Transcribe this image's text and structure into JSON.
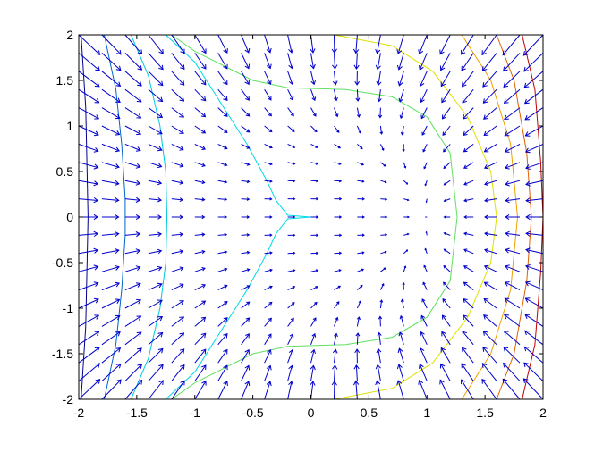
{
  "chart_data": {
    "type": "contour+quiver",
    "xlim": [
      -2,
      2
    ],
    "ylim": [
      -2,
      2
    ],
    "x_ticks": [
      -2,
      -1.5,
      -1,
      -0.5,
      0,
      0.5,
      1,
      1.5,
      2
    ],
    "y_ticks": [
      -2,
      -1.5,
      -1,
      -0.5,
      0,
      0.5,
      1,
      1.5,
      2
    ],
    "x_tick_labels": [
      "-2",
      "-1.5",
      "-1",
      "-0.5",
      "0",
      "0.5",
      "1",
      "1.5",
      "2"
    ],
    "y_tick_labels": [
      "-2",
      "-1.5",
      "-1",
      "-0.5",
      "0",
      "0.5",
      "1",
      "1.5",
      "2"
    ],
    "grid": false,
    "title": "",
    "xlabel": "",
    "ylabel": "",
    "quiver": {
      "grid_spacing": 0.2,
      "arrow_color": "#0000cc"
    },
    "contours": [
      {
        "color": "#00008f",
        "points": [
          [
            -1.98,
            2
          ],
          [
            -1.94,
            1.2
          ],
          [
            -1.93,
            0.6
          ],
          [
            -1.92,
            0
          ],
          [
            -1.93,
            -0.6
          ],
          [
            -1.94,
            -1.2
          ],
          [
            -1.98,
            -2
          ]
        ]
      },
      {
        "color": "#0066cc",
        "points": [
          [
            -1.78,
            2
          ],
          [
            -1.68,
            1.4
          ],
          [
            -1.63,
            0.8
          ],
          [
            -1.6,
            0.2
          ],
          [
            -1.6,
            0
          ],
          [
            -1.6,
            -0.2
          ],
          [
            -1.63,
            -0.8
          ],
          [
            -1.68,
            -1.4
          ],
          [
            -1.78,
            -2
          ]
        ]
      },
      {
        "color": "#00c8dc",
        "points": [
          [
            -1.55,
            2
          ],
          [
            -1.4,
            1.55
          ],
          [
            -1.3,
            1.0
          ],
          [
            -1.25,
            0.5
          ],
          [
            -1.24,
            0
          ],
          [
            -1.25,
            -0.5
          ],
          [
            -1.3,
            -1.0
          ],
          [
            -1.4,
            -1.55
          ],
          [
            -1.55,
            -2
          ]
        ]
      },
      {
        "color": "#00d8e8",
        "points": [
          [
            -1.25,
            2
          ],
          [
            -1.0,
            1.7
          ],
          [
            -0.75,
            1.2
          ],
          [
            -0.55,
            0.8
          ],
          [
            -0.38,
            0.4
          ],
          [
            -0.3,
            0.18
          ],
          [
            -0.2,
            0.02
          ],
          [
            0,
            0
          ],
          [
            -0.2,
            -0.02
          ],
          [
            -0.3,
            -0.18
          ],
          [
            -0.38,
            -0.4
          ],
          [
            -0.55,
            -0.8
          ],
          [
            -0.75,
            -1.2
          ],
          [
            -1.0,
            -1.7
          ],
          [
            -1.25,
            -2
          ]
        ]
      },
      {
        "color": "#60e060",
        "points": [
          [
            -1.2,
            -2
          ],
          [
            -1.0,
            -1.82
          ],
          [
            -0.5,
            -1.5
          ],
          [
            -0.2,
            -1.42
          ],
          [
            0.3,
            -1.4
          ],
          [
            0.7,
            -1.32
          ],
          [
            1.0,
            -1.1
          ],
          [
            1.2,
            -0.7
          ],
          [
            1.26,
            0
          ],
          [
            1.2,
            0.7
          ],
          [
            1.0,
            1.1
          ],
          [
            0.7,
            1.32
          ],
          [
            0.3,
            1.4
          ],
          [
            -0.2,
            1.42
          ],
          [
            -0.5,
            1.5
          ],
          [
            -1.0,
            1.82
          ],
          [
            -1.2,
            2
          ]
        ]
      },
      {
        "color": "#e0e000",
        "points": [
          [
            0.2,
            -2
          ],
          [
            0.7,
            -1.88
          ],
          [
            1.05,
            -1.6
          ],
          [
            1.35,
            -1.1
          ],
          [
            1.55,
            -0.5
          ],
          [
            1.6,
            0
          ],
          [
            1.55,
            0.5
          ],
          [
            1.35,
            1.1
          ],
          [
            1.05,
            1.6
          ],
          [
            0.7,
            1.88
          ],
          [
            0.2,
            2
          ]
        ]
      },
      {
        "color": "#f0a000",
        "points": [
          [
            1.3,
            -2
          ],
          [
            1.55,
            -1.5
          ],
          [
            1.72,
            -0.8
          ],
          [
            1.78,
            0
          ],
          [
            1.72,
            0.8
          ],
          [
            1.55,
            1.5
          ],
          [
            1.3,
            2
          ]
        ]
      },
      {
        "color": "#e06000",
        "points": [
          [
            1.6,
            -2
          ],
          [
            1.75,
            -1.5
          ],
          [
            1.86,
            -0.7
          ],
          [
            1.9,
            0
          ],
          [
            1.86,
            0.7
          ],
          [
            1.75,
            1.5
          ],
          [
            1.6,
            2
          ]
        ]
      },
      {
        "color": "#c00000",
        "points": [
          [
            1.82,
            -2
          ],
          [
            1.93,
            -1.4
          ],
          [
            1.98,
            -0.6
          ],
          [
            2,
            0
          ],
          [
            1.98,
            0.6
          ],
          [
            1.93,
            1.4
          ],
          [
            1.82,
            2
          ]
        ]
      }
    ]
  }
}
